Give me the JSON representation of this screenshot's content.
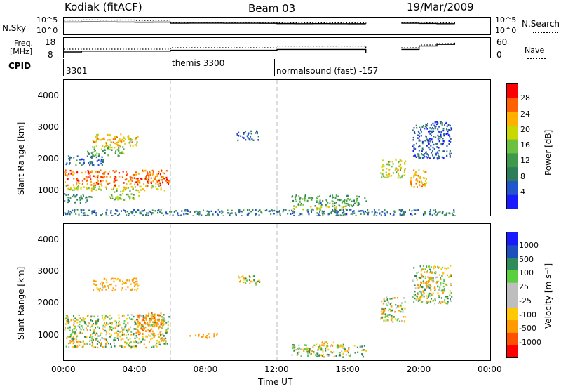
{
  "header": {
    "radar": "Kodiak (fitACF)",
    "beam": "Beam 03",
    "date": "19/Mar/2009"
  },
  "top_panels": {
    "nsky_label": "N.Sky",
    "nsky_ticks": [
      "10^5",
      "10^0"
    ],
    "nsearch_label": "N.Search",
    "nsearch_ticks": [
      "10^5",
      "10^0"
    ],
    "freq_label": "Freq.",
    "freq_unit": "[MHz]",
    "freq_ticks": [
      "18",
      "8"
    ],
    "nave_label": "Nave",
    "nave_ticks": [
      "60",
      "0"
    ],
    "cpid_label": "CPID",
    "cpid_segments": [
      {
        "label": "3301",
        "start_hour": 0.0
      },
      {
        "label": "themis 3300",
        "start_hour": 6.0
      },
      {
        "label": "normalsound (fast) -157",
        "start_hour": 12.0
      }
    ]
  },
  "colors": {
    "power_scale": [
      "#1a1aff",
      "#2255cc",
      "#2e7d5a",
      "#3e9a4a",
      "#6cc040",
      "#c8d800",
      "#ffb000",
      "#ff6000",
      "#ff0000"
    ],
    "velocity_scale": [
      "#ff0000",
      "#ff5000",
      "#ff9a00",
      "#ffc800",
      "#bebebe",
      "#bebebe",
      "#5ad040",
      "#2e8c5a",
      "#1f4fbf",
      "#1a1aff"
    ],
    "gridline": "#bbbbbb",
    "trace": "#000000"
  },
  "chart_data": [
    {
      "type": "line",
      "title": "N.Sky / N.Search",
      "ylabel": "N.Sky",
      "ylabel_right": "N.Search",
      "y_scale": "log",
      "ylim": [
        1,
        100000
      ],
      "x": [
        0,
        1,
        2,
        3,
        4,
        5,
        6,
        7,
        8,
        9,
        10,
        11,
        12,
        13,
        14,
        15,
        16,
        17,
        18,
        19,
        20,
        21,
        22
      ],
      "series": [
        {
          "name": "N.Sky",
          "style": "solid",
          "values": [
            8000,
            9000,
            8500,
            8000,
            7000,
            7500,
            3000,
            3200,
            3300,
            3000,
            3100,
            2900,
            2200,
            2000,
            2100,
            2000,
            1900,
            1800,
            null,
            3000,
            2500,
            2000,
            1500
          ]
        },
        {
          "name": "N.Search",
          "style": "dotted",
          "values": [
            40000,
            45000,
            40000,
            42000,
            30000,
            35000,
            6000,
            6500,
            6200,
            6000,
            5800,
            5500,
            4200,
            4000,
            4100,
            3900,
            3800,
            3600,
            null,
            6000,
            5000,
            4000,
            3000
          ]
        }
      ]
    },
    {
      "type": "line",
      "title": "Freq. / Nave",
      "ylabel": "Freq. [MHz]",
      "ylabel_right": "Nave",
      "ylim": [
        8,
        18
      ],
      "ylim_right": [
        0,
        60
      ],
      "x": [
        0,
        1,
        2,
        3,
        4,
        5,
        6,
        7,
        8,
        9,
        10,
        11,
        12,
        13,
        14,
        15,
        16,
        17,
        18,
        19,
        20,
        21,
        22
      ],
      "series": [
        {
          "name": "Freq.",
          "style": "solid",
          "values": [
            10.5,
            11,
            11,
            11,
            11,
            11,
            11.5,
            11.5,
            11.5,
            11.5,
            11.5,
            11.5,
            12,
            12,
            12,
            12,
            12,
            10,
            null,
            12,
            14,
            15,
            16
          ]
        },
        {
          "name": "Nave",
          "style": "dotted",
          "values": [
            25,
            25,
            25,
            25,
            25,
            25,
            30,
            30,
            30,
            30,
            30,
            30,
            36,
            36,
            36,
            36,
            36,
            20,
            null,
            30,
            40,
            45,
            50
          ]
        }
      ]
    },
    {
      "type": "heatmap",
      "title": "Power",
      "ylabel": "Slant Range [km]",
      "xlabel": "",
      "colorbar_label": "Power [dB]",
      "colorbar_ticks": [
        4,
        8,
        12,
        16,
        20,
        24,
        28
      ],
      "xlim": [
        0,
        24
      ],
      "ylim": [
        180,
        4500
      ],
      "y_ticks": [
        1000,
        2000,
        3000,
        4000
      ],
      "blobs": [
        {
          "t0": 0.0,
          "t1": 5.9,
          "r0": 1150,
          "r1": 1650,
          "power": 26
        },
        {
          "t0": 0.1,
          "t1": 5.8,
          "r0": 1000,
          "r1": 1150,
          "power": 20
        },
        {
          "t0": 1.6,
          "t1": 4.2,
          "r0": 2400,
          "r1": 2800,
          "power": 22
        },
        {
          "t0": 1.3,
          "t1": 3.4,
          "r0": 2100,
          "r1": 2400,
          "power": 14
        },
        {
          "t0": 2.5,
          "t1": 4.2,
          "r0": 700,
          "r1": 1000,
          "power": 16
        },
        {
          "t0": 0.0,
          "t1": 1.6,
          "r0": 600,
          "r1": 900,
          "power": 10
        },
        {
          "t0": 0.0,
          "t1": 2.2,
          "r0": 1800,
          "r1": 2100,
          "power": 8
        },
        {
          "t0": 9.7,
          "t1": 11.0,
          "r0": 2600,
          "r1": 2900,
          "power": 6
        },
        {
          "t0": 12.8,
          "t1": 17.0,
          "r0": 500,
          "r1": 850,
          "power": 12
        },
        {
          "t0": 12.8,
          "t1": 16.0,
          "r0": 400,
          "r1": 500,
          "power": 20
        },
        {
          "t0": 17.8,
          "t1": 19.2,
          "r0": 1400,
          "r1": 2000,
          "power": 18
        },
        {
          "t0": 19.4,
          "t1": 20.4,
          "r0": 1100,
          "r1": 1700,
          "power": 24
        },
        {
          "t0": 19.6,
          "t1": 21.8,
          "r0": 2000,
          "r1": 3200,
          "power": 6
        },
        {
          "t0": 0.0,
          "t1": 22.0,
          "r0": 180,
          "r1": 400,
          "power": 8
        }
      ]
    },
    {
      "type": "heatmap",
      "title": "Velocity",
      "ylabel": "Slant Range [km]",
      "xlabel": "Time UT",
      "colorbar_label": "Velocity [m s⁻¹]",
      "colorbar_ticks": [
        -1000,
        -500,
        -100,
        -25,
        25,
        100,
        500,
        1000
      ],
      "xlim": [
        0,
        24
      ],
      "ylim": [
        180,
        4500
      ],
      "x_ticks": [
        "00:00",
        "04:00",
        "08:00",
        "12:00",
        "16:00",
        "20:00",
        "00:00"
      ],
      "y_ticks": [
        1000,
        2000,
        3000,
        4000
      ],
      "blobs": [
        {
          "t0": 0.0,
          "t1": 5.9,
          "r0": 1150,
          "r1": 1650,
          "vel": 0
        },
        {
          "t0": 0.1,
          "t1": 5.8,
          "r0": 600,
          "r1": 1150,
          "vel": 0
        },
        {
          "t0": 1.6,
          "t1": 4.2,
          "r0": 2400,
          "r1": 2800,
          "vel": -200
        },
        {
          "t0": 4.0,
          "t1": 5.6,
          "r0": 1000,
          "r1": 1700,
          "vel": -400
        },
        {
          "t0": 9.7,
          "t1": 11.0,
          "r0": 2600,
          "r1": 2900,
          "vel": 0
        },
        {
          "t0": 12.8,
          "t1": 17.0,
          "r0": 300,
          "r1": 700,
          "vel": 60
        },
        {
          "t0": 14.0,
          "t1": 15.2,
          "r0": 650,
          "r1": 800,
          "vel": -200
        },
        {
          "t0": 17.8,
          "t1": 19.2,
          "r0": 1400,
          "r1": 2200,
          "vel": 0
        },
        {
          "t0": 19.6,
          "t1": 21.8,
          "r0": 2000,
          "r1": 3200,
          "vel": 0
        },
        {
          "t0": 20.0,
          "t1": 20.6,
          "r0": 2500,
          "r1": 2700,
          "vel": -300
        },
        {
          "t0": 7.0,
          "t1": 8.6,
          "r0": 900,
          "r1": 1050,
          "vel": -300
        }
      ]
    }
  ]
}
